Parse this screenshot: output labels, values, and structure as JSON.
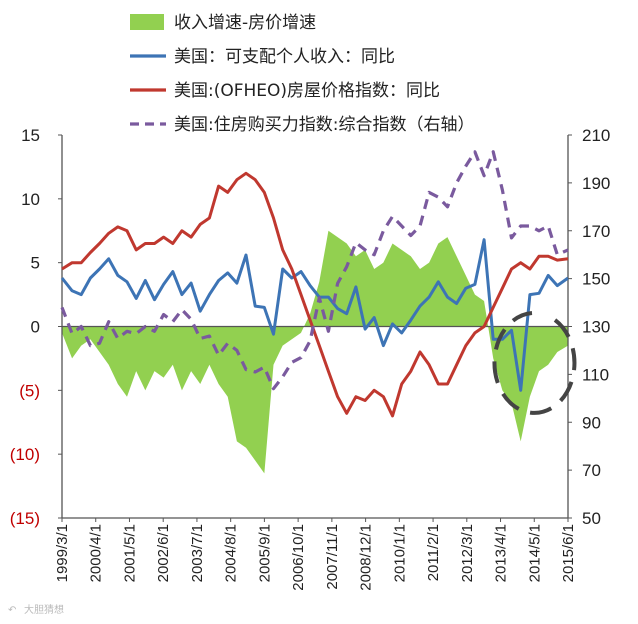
{
  "chart_data": {
    "type": "line",
    "title": "",
    "x_labels": [
      "1999/3/1",
      "2000/4/1",
      "2001/5/1",
      "2002/6/1",
      "2003/7/1",
      "2004/8/1",
      "2005/9/1",
      "2006/10/1",
      "2007/11/1",
      "2008/12/1",
      "2010/1/1",
      "2011/2/1",
      "2012/3/1",
      "2013/4/1",
      "2014/5/1",
      "2015/6/1"
    ],
    "x_range": [
      1999.17,
      2015.75
    ],
    "y_left": {
      "range": [
        -15,
        15
      ],
      "ticks": [
        15,
        10,
        5,
        0,
        -5,
        -10,
        -15
      ],
      "tick_labels": [
        "15",
        "10",
        "5",
        "0",
        "(5)",
        "(10)",
        "(15)"
      ]
    },
    "y_right": {
      "range": [
        50,
        210
      ],
      "ticks": [
        210,
        190,
        170,
        150,
        130,
        110,
        90,
        70,
        50
      ],
      "tick_labels": [
        "210",
        "190",
        "170",
        "150",
        "130",
        "110",
        "90",
        "70",
        "50"
      ]
    },
    "legend": {
      "placement": "top",
      "entries": [
        {
          "label": "收入增速-房价增速",
          "color": "#92d050",
          "style": "area"
        },
        {
          "label": "美国：可支配个人收入：同比",
          "color": "#3d74b5",
          "style": "line"
        },
        {
          "label": "美国:(OFHEO)房屋价格指数：同比",
          "color": "#c0382f",
          "style": "line"
        },
        {
          "label": "美国:住房购买力指数:综合指数（右轴）",
          "color": "#7a5a9e",
          "style": "dashed"
        }
      ]
    },
    "series": [
      {
        "name": "收入增速-房价增速",
        "axis": "left",
        "type": "area",
        "color": "#92d050",
        "x": [
          1999.17,
          1999.5,
          1999.8,
          2000.1,
          2000.4,
          2000.7,
          2001.0,
          2001.3,
          2001.6,
          2001.9,
          2002.2,
          2002.5,
          2002.8,
          2003.1,
          2003.4,
          2003.7,
          2004.0,
          2004.3,
          2004.6,
          2004.9,
          2005.2,
          2005.5,
          2005.8,
          2006.1,
          2006.4,
          2006.7,
          2007.0,
          2007.3,
          2007.6,
          2007.9,
          2008.2,
          2008.5,
          2008.8,
          2009.1,
          2009.4,
          2009.7,
          2010.0,
          2010.3,
          2010.6,
          2010.9,
          2011.2,
          2011.5,
          2011.8,
          2012.1,
          2012.4,
          2012.7,
          2013.0,
          2013.3,
          2013.6,
          2013.9,
          2014.2,
          2014.5,
          2014.8,
          2015.1,
          2015.4,
          2015.75
        ],
        "y": [
          -0.5,
          -2.5,
          -1.5,
          -1.0,
          -2.0,
          -3.0,
          -4.5,
          -5.5,
          -3.5,
          -5.0,
          -3.5,
          -4.0,
          -3.0,
          -5.0,
          -3.5,
          -4.5,
          -3.0,
          -4.5,
          -5.5,
          -9.0,
          -9.5,
          -10.5,
          -11.5,
          -3.0,
          -1.5,
          -1.0,
          -0.5,
          1.0,
          3.5,
          7.5,
          7.0,
          6.5,
          5.5,
          6.0,
          4.5,
          5.0,
          6.5,
          6.0,
          5.5,
          4.5,
          5.0,
          6.5,
          7.0,
          5.5,
          4.0,
          2.5,
          2.0,
          -2.5,
          -5.0,
          -6.0,
          -9.0,
          -5.5,
          -3.5,
          -3.0,
          -2.0,
          -1.5
        ]
      },
      {
        "name": "美国：可支配个人收入：同比",
        "axis": "left",
        "type": "line",
        "color": "#3d74b5",
        "x": [
          1999.17,
          1999.5,
          1999.8,
          2000.1,
          2000.4,
          2000.7,
          2001.0,
          2001.3,
          2001.6,
          2001.9,
          2002.2,
          2002.5,
          2002.8,
          2003.1,
          2003.4,
          2003.7,
          2004.0,
          2004.3,
          2004.6,
          2004.9,
          2005.2,
          2005.5,
          2005.8,
          2006.1,
          2006.4,
          2006.7,
          2007.0,
          2007.3,
          2007.6,
          2007.9,
          2008.2,
          2008.5,
          2008.8,
          2009.1,
          2009.4,
          2009.7,
          2010.0,
          2010.3,
          2010.6,
          2010.9,
          2011.2,
          2011.5,
          2011.8,
          2012.1,
          2012.4,
          2012.7,
          2013.0,
          2013.3,
          2013.6,
          2013.9,
          2014.2,
          2014.5,
          2014.8,
          2015.1,
          2015.4,
          2015.75
        ],
        "y": [
          3.8,
          2.8,
          2.5,
          3.8,
          4.5,
          5.3,
          4.0,
          3.5,
          2.2,
          3.6,
          2.1,
          3.3,
          4.3,
          2.5,
          3.4,
          1.2,
          2.5,
          3.6,
          4.2,
          3.4,
          5.6,
          1.6,
          1.5,
          -0.6,
          4.5,
          3.8,
          4.3,
          3.2,
          2.3,
          2.3,
          1.4,
          1.0,
          3.1,
          -0.2,
          0.7,
          -1.5,
          0.2,
          -0.5,
          0.5,
          1.6,
          2.3,
          3.5,
          2.3,
          1.8,
          3.0,
          3.3,
          6.8,
          -1.0,
          -1.0,
          -0.3,
          -5.0,
          2.5,
          2.6,
          4.0,
          3.2,
          3.8
        ]
      },
      {
        "name": "美国:(OFHEO)房屋价格指数：同比",
        "axis": "left",
        "type": "line",
        "color": "#c0382f",
        "x": [
          1999.17,
          1999.5,
          1999.8,
          2000.1,
          2000.4,
          2000.7,
          2001.0,
          2001.3,
          2001.6,
          2001.9,
          2002.2,
          2002.5,
          2002.8,
          2003.1,
          2003.4,
          2003.7,
          2004.0,
          2004.3,
          2004.6,
          2004.9,
          2005.2,
          2005.5,
          2005.8,
          2006.1,
          2006.4,
          2006.7,
          2007.0,
          2007.3,
          2007.6,
          2007.9,
          2008.2,
          2008.5,
          2008.8,
          2009.1,
          2009.4,
          2009.7,
          2010.0,
          2010.3,
          2010.6,
          2010.9,
          2011.2,
          2011.5,
          2011.8,
          2012.1,
          2012.4,
          2012.7,
          2013.0,
          2013.3,
          2013.6,
          2013.9,
          2014.2,
          2014.5,
          2014.8,
          2015.1,
          2015.4,
          2015.75
        ],
        "y": [
          4.5,
          5.0,
          5.0,
          5.8,
          6.5,
          7.3,
          7.8,
          7.5,
          6.0,
          6.5,
          6.5,
          7.0,
          6.5,
          7.5,
          7.0,
          8.0,
          8.5,
          11.0,
          10.5,
          11.5,
          12.0,
          11.5,
          10.5,
          8.5,
          6.0,
          4.5,
          2.5,
          0.5,
          -1.5,
          -3.5,
          -5.5,
          -6.8,
          -5.5,
          -5.8,
          -5.0,
          -5.5,
          -7.0,
          -4.5,
          -3.5,
          -2.0,
          -3.0,
          -4.5,
          -4.5,
          -3.0,
          -1.5,
          -0.5,
          0.0,
          1.5,
          3.0,
          4.5,
          5.0,
          4.5,
          5.5,
          5.5,
          5.2,
          5.3
        ]
      },
      {
        "name": "美国:住房购买力指数:综合指数（右轴）",
        "axis": "right",
        "type": "line",
        "style": "dashed",
        "color": "#7a5a9e",
        "x": [
          1999.17,
          1999.5,
          1999.8,
          2000.1,
          2000.4,
          2000.7,
          2001.0,
          2001.3,
          2001.6,
          2001.9,
          2002.2,
          2002.5,
          2002.8,
          2003.1,
          2003.4,
          2003.7,
          2004.0,
          2004.3,
          2004.6,
          2004.9,
          2005.2,
          2005.5,
          2005.8,
          2006.1,
          2006.4,
          2006.7,
          2007.0,
          2007.3,
          2007.6,
          2007.9,
          2008.2,
          2008.5,
          2008.8,
          2009.1,
          2009.4,
          2009.7,
          2010.0,
          2010.3,
          2010.6,
          2010.9,
          2011.2,
          2011.5,
          2011.8,
          2012.1,
          2012.4,
          2012.7,
          2013.0,
          2013.3,
          2013.6,
          2013.9,
          2014.2,
          2014.5,
          2014.8,
          2015.1,
          2015.4,
          2015.75
        ],
        "y": [
          138,
          127,
          130,
          122,
          123,
          132,
          125,
          128,
          127,
          130,
          128,
          135,
          132,
          137,
          133,
          125,
          126,
          118,
          123,
          120,
          112,
          111,
          113,
          104,
          109,
          115,
          117,
          124,
          142,
          128,
          148,
          155,
          165,
          162,
          160,
          170,
          176,
          172,
          168,
          172,
          186,
          184,
          180,
          190,
          197,
          203,
          193,
          203,
          187,
          167,
          172,
          172,
          170,
          172,
          160,
          162
        ]
      }
    ]
  },
  "watermark": {
    "text": "大胆猜想"
  }
}
